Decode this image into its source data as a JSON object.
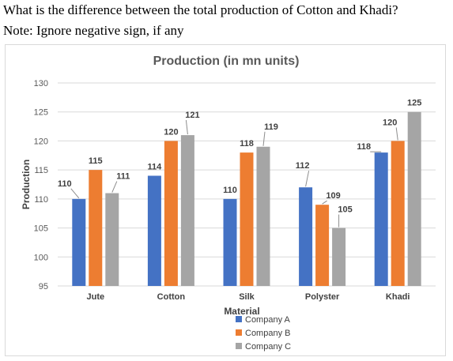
{
  "question": {
    "line1": "What is the difference between the total production of Cotton and Khadi?",
    "line2": "Note: Ignore negative sign, if any"
  },
  "chart_data": {
    "type": "bar",
    "title": "Production (in mn units)",
    "xlabel": "Material",
    "ylabel": "Production",
    "categories": [
      "Jute",
      "Cotton",
      "Silk",
      "Polyster",
      "Khadi"
    ],
    "series": [
      {
        "name": "Company A",
        "values": [
          110,
          114,
          110,
          112,
          118
        ],
        "color": "#4472c4"
      },
      {
        "name": "Company B",
        "values": [
          115,
          120,
          118,
          109,
          120
        ],
        "color": "#ed7d31"
      },
      {
        "name": "Company C",
        "values": [
          111,
          121,
          119,
          105,
          125
        ],
        "color": "#a5a5a5"
      }
    ],
    "ylim": [
      95,
      130
    ],
    "yticks": [
      95,
      100,
      105,
      110,
      115,
      120,
      125,
      130
    ],
    "grid": true,
    "legend": "bottom",
    "data_labels": true
  }
}
